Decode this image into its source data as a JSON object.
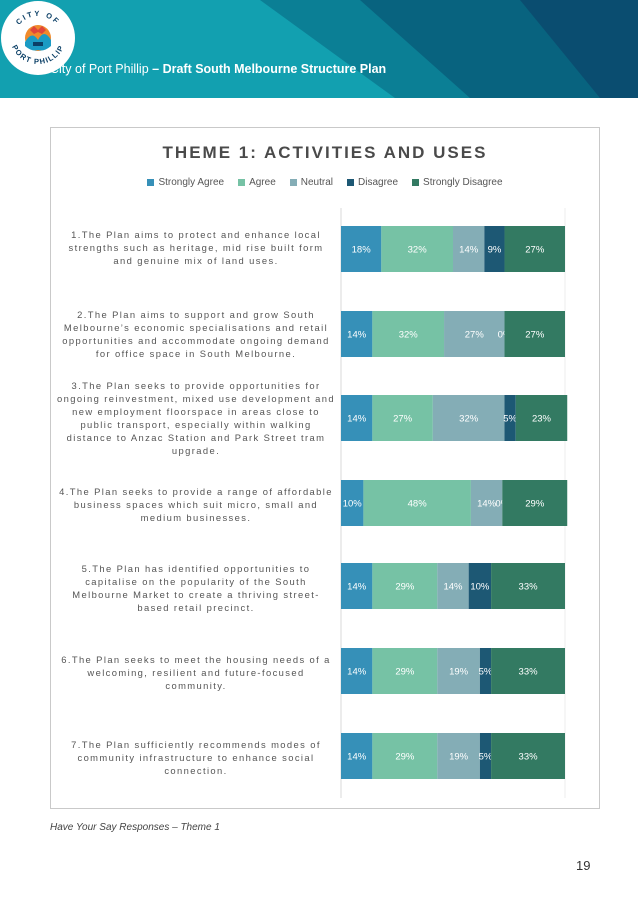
{
  "header": {
    "org_name": "City of Port Phillip",
    "doc_subtitle": "– Draft South Melbourne Structure Plan",
    "logo_text_top": "CITY OF",
    "logo_text_bottom": "PORT PHILLIP",
    "colors": {
      "teal_light": "#17a5b3",
      "teal_dark": "#0b6f86",
      "navy": "#0b3f66"
    }
  },
  "chart_data": {
    "type": "bar",
    "orientation": "horizontal",
    "stacked": true,
    "title": "THEME 1: ACTIVITIES AND USES",
    "legend_position": "top",
    "grid": true,
    "xlim": [
      0,
      100
    ],
    "unit": "%",
    "categories": [
      "1.The Plan aims to protect and enhance local strengths such as heritage, mid rise built form and genuine mix of land uses.",
      "2.The Plan aims to support and grow South Melbourne’s economic specialisations and retail opportunities and accommodate ongoing demand for office space in South Melbourne.",
      "3.The Plan seeks to provide opportunities for ongoing reinvestment, mixed use development and new employment floorspace in areas close to public transport, especially within walking distance to Anzac Station and Park Street tram upgrade.",
      "4.The Plan seeks to provide a range of affordable business spaces which suit micro, small and medium businesses.",
      "5.The Plan has identified opportunities to capitalise on the popularity of the South Melbourne Market to create a thriving street-based retail precinct.",
      "6.The Plan seeks to meet the housing needs of a welcoming, resilient and future-focused community.",
      "7.The Plan sufficiently recommends modes of community infrastructure to enhance social connection."
    ],
    "series": [
      {
        "name": "Strongly Agree",
        "color": "#3690b8",
        "values": [
          18,
          14,
          14,
          10,
          14,
          14,
          14
        ]
      },
      {
        "name": "Agree",
        "color": "#76c2a5",
        "values": [
          32,
          32,
          27,
          48,
          29,
          29,
          29
        ]
      },
      {
        "name": "Neutral",
        "color": "#84adb6",
        "values": [
          14,
          27,
          32,
          14,
          14,
          19,
          19
        ]
      },
      {
        "name": "Disagree",
        "color": "#1d5874",
        "values": [
          9,
          0,
          5,
          0,
          10,
          5,
          5
        ]
      },
      {
        "name": "Strongly Disagree",
        "color": "#337a62",
        "values": [
          27,
          27,
          23,
          29,
          33,
          33,
          33
        ]
      }
    ]
  },
  "footer": {
    "caption": "Have Your Say Responses – Theme 1",
    "page_number": "19"
  }
}
